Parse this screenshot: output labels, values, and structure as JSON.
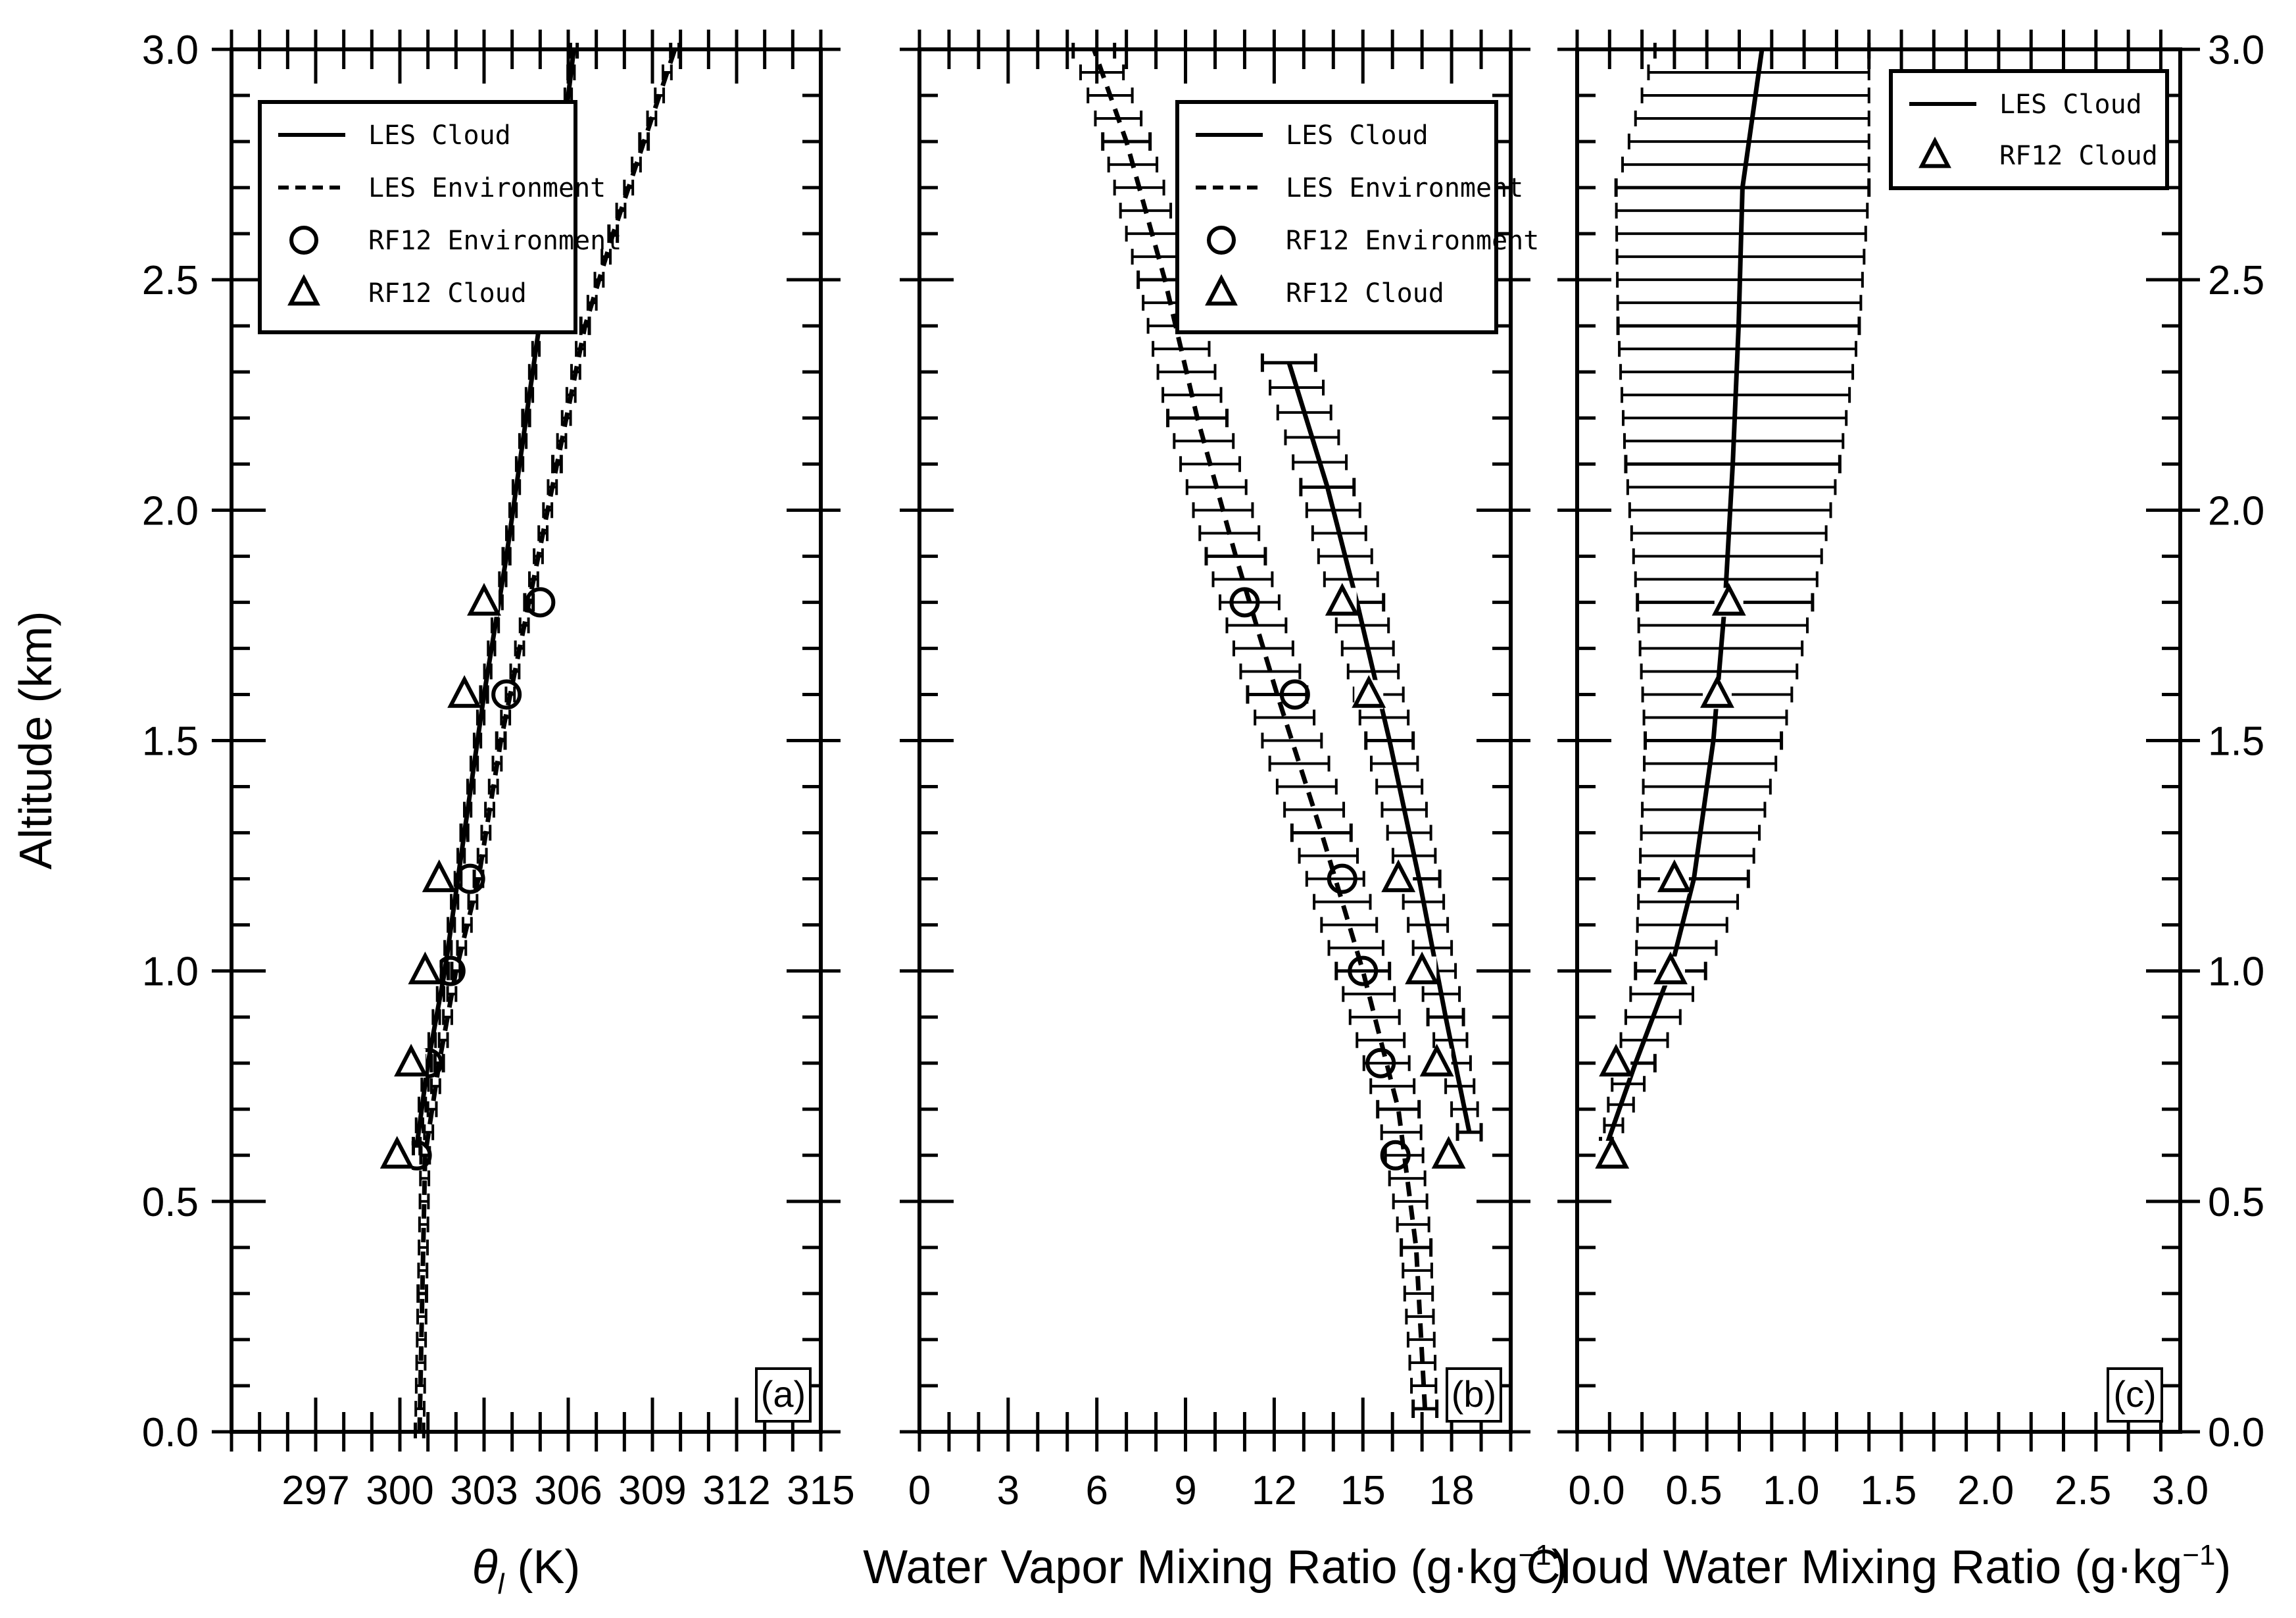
{
  "figure": {
    "ylabel": "Altitude (km)",
    "y_ticks_left": [
      "0.0",
      "0.5",
      "1.0",
      "1.5",
      "2.0",
      "2.5",
      "3.0"
    ],
    "y_ticks_right": [
      "0.0",
      "0.5",
      "1.0",
      "1.5",
      "2.0",
      "2.5",
      "3.0"
    ],
    "ylim": [
      0,
      3.0
    ]
  },
  "chart_data": [
    {
      "type": "line",
      "panel_label": "(a)",
      "xlabel_main": "θ",
      "xlabel_sub": "l",
      "xlabel_unit": " (K)",
      "xlim": [
        294,
        315
      ],
      "x_ticks": [
        297,
        300,
        303,
        306,
        309,
        312,
        315
      ],
      "x_tick_labels": [
        "297",
        "300",
        "303",
        "306",
        "309",
        "312",
        "315"
      ],
      "ylabel": "Altitude (km)",
      "ylim": [
        0,
        3.0
      ],
      "legend": {
        "position": "upper-left",
        "entries": [
          {
            "label": "LES Cloud",
            "marker": "solid-line"
          },
          {
            "label": "LES Environment",
            "marker": "dashed-line"
          },
          {
            "label": "RF12 Environment",
            "marker": "circle"
          },
          {
            "label": "RF12 Cloud",
            "marker": "triangle"
          }
        ]
      },
      "series": [
        {
          "name": "LES Cloud",
          "style": "solid",
          "error_bars": true,
          "points": [
            [
              300.6,
              0.62
            ],
            [
              301.0,
              0.8
            ],
            [
              301.6,
              1.0
            ],
            [
              302.3,
              1.3
            ],
            [
              303.0,
              1.6
            ],
            [
              303.8,
              1.9
            ],
            [
              304.5,
              2.2
            ],
            [
              305.2,
              2.5
            ],
            [
              305.8,
              2.8
            ],
            [
              306.2,
              3.0
            ]
          ],
          "errors": [
            0.12,
            0.12,
            0.12,
            0.12,
            0.12,
            0.12,
            0.12,
            0.12,
            0.12,
            0.12
          ]
        },
        {
          "name": "LES Environment",
          "style": "dashed",
          "error_bars": true,
          "points": [
            [
              300.7,
              0.0
            ],
            [
              300.8,
              0.3
            ],
            [
              300.9,
              0.6
            ],
            [
              301.4,
              0.8
            ],
            [
              302.0,
              1.0
            ],
            [
              302.8,
              1.2
            ],
            [
              303.6,
              1.5
            ],
            [
              304.6,
              1.8
            ],
            [
              305.6,
              2.1
            ],
            [
              306.6,
              2.4
            ],
            [
              307.6,
              2.6
            ],
            [
              308.7,
              2.8
            ],
            [
              309.8,
              3.0
            ]
          ],
          "errors": [
            0.15,
            0.15,
            0.15,
            0.15,
            0.15,
            0.15,
            0.15,
            0.15,
            0.15,
            0.15,
            0.15,
            0.15,
            0.15
          ]
        },
        {
          "name": "RF12 Environment",
          "style": "circle",
          "points": [
            [
              300.6,
              0.6
            ],
            [
              301.0,
              0.8
            ],
            [
              301.8,
              1.0
            ],
            [
              302.5,
              1.2
            ],
            [
              303.8,
              1.6
            ],
            [
              305.0,
              1.8
            ]
          ]
        },
        {
          "name": "RF12 Cloud",
          "style": "triangle",
          "points": [
            [
              299.9,
              0.6
            ],
            [
              300.4,
              0.8
            ],
            [
              300.9,
              1.0
            ],
            [
              301.4,
              1.2
            ],
            [
              302.3,
              1.6
            ],
            [
              303.0,
              1.8
            ]
          ]
        }
      ]
    },
    {
      "type": "line",
      "panel_label": "(b)",
      "xlabel_main": "Water Vapor Mixing Ratio (g·kg",
      "xlabel_sup": "−1",
      "xlabel_unit": ")",
      "xlim": [
        0,
        20
      ],
      "x_ticks": [
        0,
        3,
        6,
        9,
        12,
        15,
        18
      ],
      "x_tick_labels": [
        "0",
        "3",
        "6",
        "9",
        "12",
        "15",
        "18"
      ],
      "ylim": [
        0,
        3.0
      ],
      "legend": {
        "position": "upper-right",
        "entries": [
          {
            "label": "LES Cloud",
            "marker": "solid-line"
          },
          {
            "label": "LES Environment",
            "marker": "dashed-line"
          },
          {
            "label": "RF12 Environment",
            "marker": "circle"
          },
          {
            "label": "RF12 Cloud",
            "marker": "triangle"
          }
        ]
      },
      "series": [
        {
          "name": "LES Cloud",
          "style": "solid",
          "error_bars": true,
          "points": [
            [
              18.6,
              0.65
            ],
            [
              17.8,
              0.9
            ],
            [
              16.9,
              1.2
            ],
            [
              15.9,
              1.5
            ],
            [
              14.8,
              1.8
            ],
            [
              13.8,
              2.05
            ],
            [
              12.5,
              2.32
            ]
          ],
          "errors": [
            0.4,
            0.6,
            0.7,
            0.8,
            0.9,
            0.9,
            0.9
          ]
        },
        {
          "name": "LES Environment",
          "style": "dashed",
          "error_bars": true,
          "points": [
            [
              17.1,
              0.05
            ],
            [
              16.8,
              0.4
            ],
            [
              16.2,
              0.7
            ],
            [
              15.0,
              1.0
            ],
            [
              13.6,
              1.3
            ],
            [
              12.1,
              1.6
            ],
            [
              10.7,
              1.9
            ],
            [
              9.4,
              2.2
            ],
            [
              8.3,
              2.5
            ],
            [
              7.0,
              2.8
            ],
            [
              5.9,
              3.0
            ]
          ],
          "errors": [
            0.4,
            0.5,
            0.7,
            0.9,
            1.0,
            1.0,
            1.0,
            1.0,
            0.9,
            0.8,
            0.7
          ]
        },
        {
          "name": "RF12 Environment",
          "style": "circle",
          "points": [
            [
              16.1,
              0.6
            ],
            [
              15.6,
              0.8
            ],
            [
              15.0,
              1.0
            ],
            [
              14.3,
              1.2
            ],
            [
              12.7,
              1.6
            ],
            [
              11.0,
              1.8
            ]
          ]
        },
        {
          "name": "RF12 Cloud",
          "style": "triangle",
          "points": [
            [
              17.9,
              0.6
            ],
            [
              17.5,
              0.8
            ],
            [
              17.0,
              1.0
            ],
            [
              16.2,
              1.2
            ],
            [
              15.2,
              1.6
            ],
            [
              14.3,
              1.8
            ]
          ]
        }
      ]
    },
    {
      "type": "line",
      "panel_label": "(c)",
      "xlabel_main": "Cloud Water Mixing Ratio (g·kg",
      "xlabel_sup": "−1",
      "xlabel_unit": ")",
      "xlim": [
        -0.1,
        3.0
      ],
      "x_ticks": [
        0.0,
        0.5,
        1.0,
        1.5,
        2.0,
        2.5,
        3.0
      ],
      "x_tick_labels": [
        "0.0",
        "0.5",
        "1.0",
        "1.5",
        "2.0",
        "2.5",
        "3.0"
      ],
      "ylim": [
        0,
        3.0
      ],
      "legend": {
        "position": "upper-right",
        "entries": [
          {
            "label": "LES Cloud",
            "marker": "solid-line"
          },
          {
            "label": "RF12 Cloud",
            "marker": "triangle"
          }
        ]
      },
      "series": [
        {
          "name": "LES Cloud",
          "style": "solid",
          "error_bars": true,
          "points": [
            [
              0.05,
              0.62
            ],
            [
              0.2,
              0.8
            ],
            [
              0.38,
              1.0
            ],
            [
              0.5,
              1.2
            ],
            [
              0.6,
              1.5
            ],
            [
              0.66,
              1.8
            ],
            [
              0.7,
              2.1
            ],
            [
              0.73,
              2.4
            ],
            [
              0.75,
              2.7
            ],
            [
              0.85,
              3.0
            ]
          ],
          "errors": [
            0.03,
            0.1,
            0.18,
            0.28,
            0.35,
            0.45,
            0.55,
            0.62,
            0.65,
            0.55
          ]
        },
        {
          "name": "RF12 Cloud",
          "style": "triangle",
          "points": [
            [
              0.08,
              0.6
            ],
            [
              0.1,
              0.8
            ],
            [
              0.38,
              1.0
            ],
            [
              0.4,
              1.2
            ],
            [
              0.62,
              1.6
            ],
            [
              0.68,
              1.8
            ]
          ]
        }
      ]
    }
  ]
}
